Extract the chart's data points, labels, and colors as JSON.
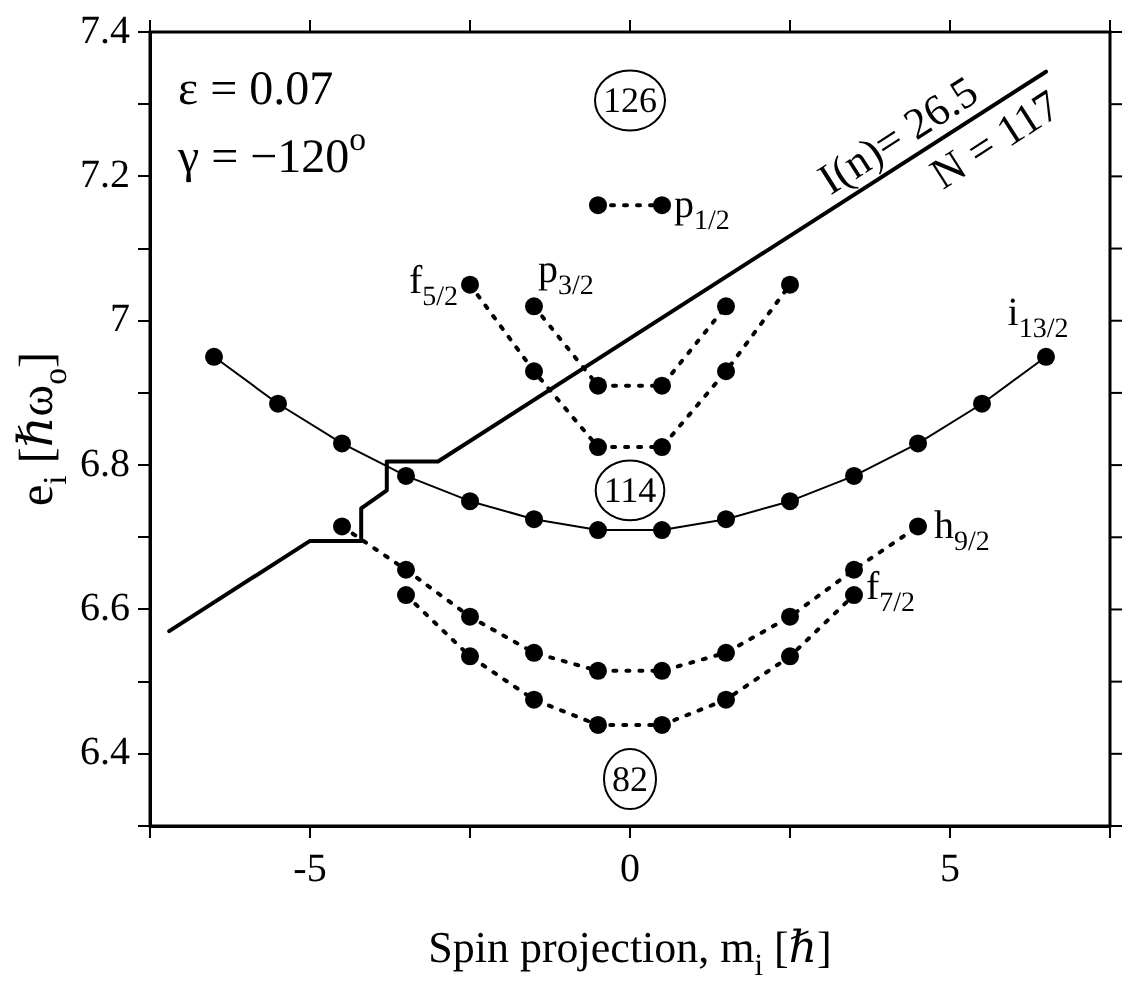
{
  "chart_data": {
    "type": "line",
    "xlabel": "Spin projection, m$_{i}$ [ℏ]",
    "ylabel": "e$_{i}$ [ℏω$_{o}$]",
    "xlim": [
      -7.5,
      7.5
    ],
    "xticks": [
      {
        "value": -7.5,
        "label": null
      },
      -5,
      {
        "value": -2.5,
        "label": null
      },
      0,
      {
        "value": 2.5,
        "label": null
      },
      5,
      {
        "value": 7.5,
        "label": null
      }
    ],
    "ylim": [
      6.3,
      7.4
    ],
    "yticks": [
      {
        "value": 6.3,
        "label": null
      },
      6.4,
      {
        "value": 6.5,
        "label": null
      },
      6.6,
      {
        "value": 6.7,
        "label": null
      },
      6.8,
      {
        "value": 6.9,
        "label": null
      },
      7,
      {
        "value": 7.1,
        "label": null
      },
      7.2,
      {
        "value": 7.3,
        "label": null
      },
      7.4
    ],
    "grid": false,
    "marker": "circle",
    "line_style": "dotted",
    "series": [
      {
        "name": "i$_{13/2}$",
        "color": "#000000",
        "line_style": "solid",
        "x": [
          -6.5,
          -5.5,
          -4.5,
          -3.5,
          -2.5,
          -1.5,
          -0.5,
          0.5,
          1.5,
          2.5,
          3.5,
          4.5,
          5.5,
          6.5
        ],
        "values": [
          6.95,
          6.885,
          6.83,
          6.785,
          6.75,
          6.725,
          6.71,
          6.71,
          6.725,
          6.75,
          6.785,
          6.83,
          6.885,
          6.95
        ]
      },
      {
        "name": "h$_{9/2}$",
        "color": "#000000",
        "x": [
          -4.5,
          -3.5,
          -2.5,
          -1.5,
          -0.5,
          0.5,
          1.5,
          2.5,
          3.5,
          4.5
        ],
        "values": [
          6.715,
          6.655,
          6.59,
          6.54,
          6.515,
          6.515,
          6.54,
          6.59,
          6.655,
          6.715
        ]
      },
      {
        "name": "f$_{7/2}$",
        "color": "#000000",
        "x": [
          -3.5,
          -2.5,
          -1.5,
          -0.5,
          0.5,
          1.5,
          2.5,
          3.5
        ],
        "values": [
          6.62,
          6.535,
          6.475,
          6.44,
          6.44,
          6.475,
          6.535,
          6.62
        ]
      },
      {
        "name": "f$_{5/2}$",
        "color": "#000000",
        "x": [
          -2.5,
          -1.5,
          -0.5,
          0.5,
          1.5,
          2.5
        ],
        "values": [
          7.05,
          6.93,
          6.825,
          6.825,
          6.93,
          7.05
        ]
      },
      {
        "name": "p$_{3/2}$",
        "color": "#000000",
        "x": [
          -1.5,
          -0.5,
          0.5,
          1.5
        ],
        "values": [
          7.02,
          6.91,
          6.91,
          7.02
        ]
      },
      {
        "name": "p$_{1/2}$",
        "color": "#000000",
        "x": [
          -0.5,
          0.5
        ],
        "values": [
          7.16,
          7.16
        ]
      },
      {
        "color": "#000000",
        "line_style": "solid",
        "marker": "none",
        "x": [
          -7.2,
          -5,
          -4.2,
          -4.2,
          -3.8,
          -3.8,
          -3,
          6.5
        ],
        "values": [
          6.57,
          6.695,
          6.695,
          6.74,
          6.765,
          6.805,
          6.805,
          7.345
        ]
      }
    ],
    "annotations": [
      "ε = 0.07",
      "γ = −120$^{o}$",
      {
        "text": "126",
        "y": 7.305
      },
      {
        "text": "114",
        "y": 6.765
      },
      {
        "text": "82",
        "y": 6.365
      },
      "I(n)= 26.5",
      "N = 117"
    ]
  }
}
